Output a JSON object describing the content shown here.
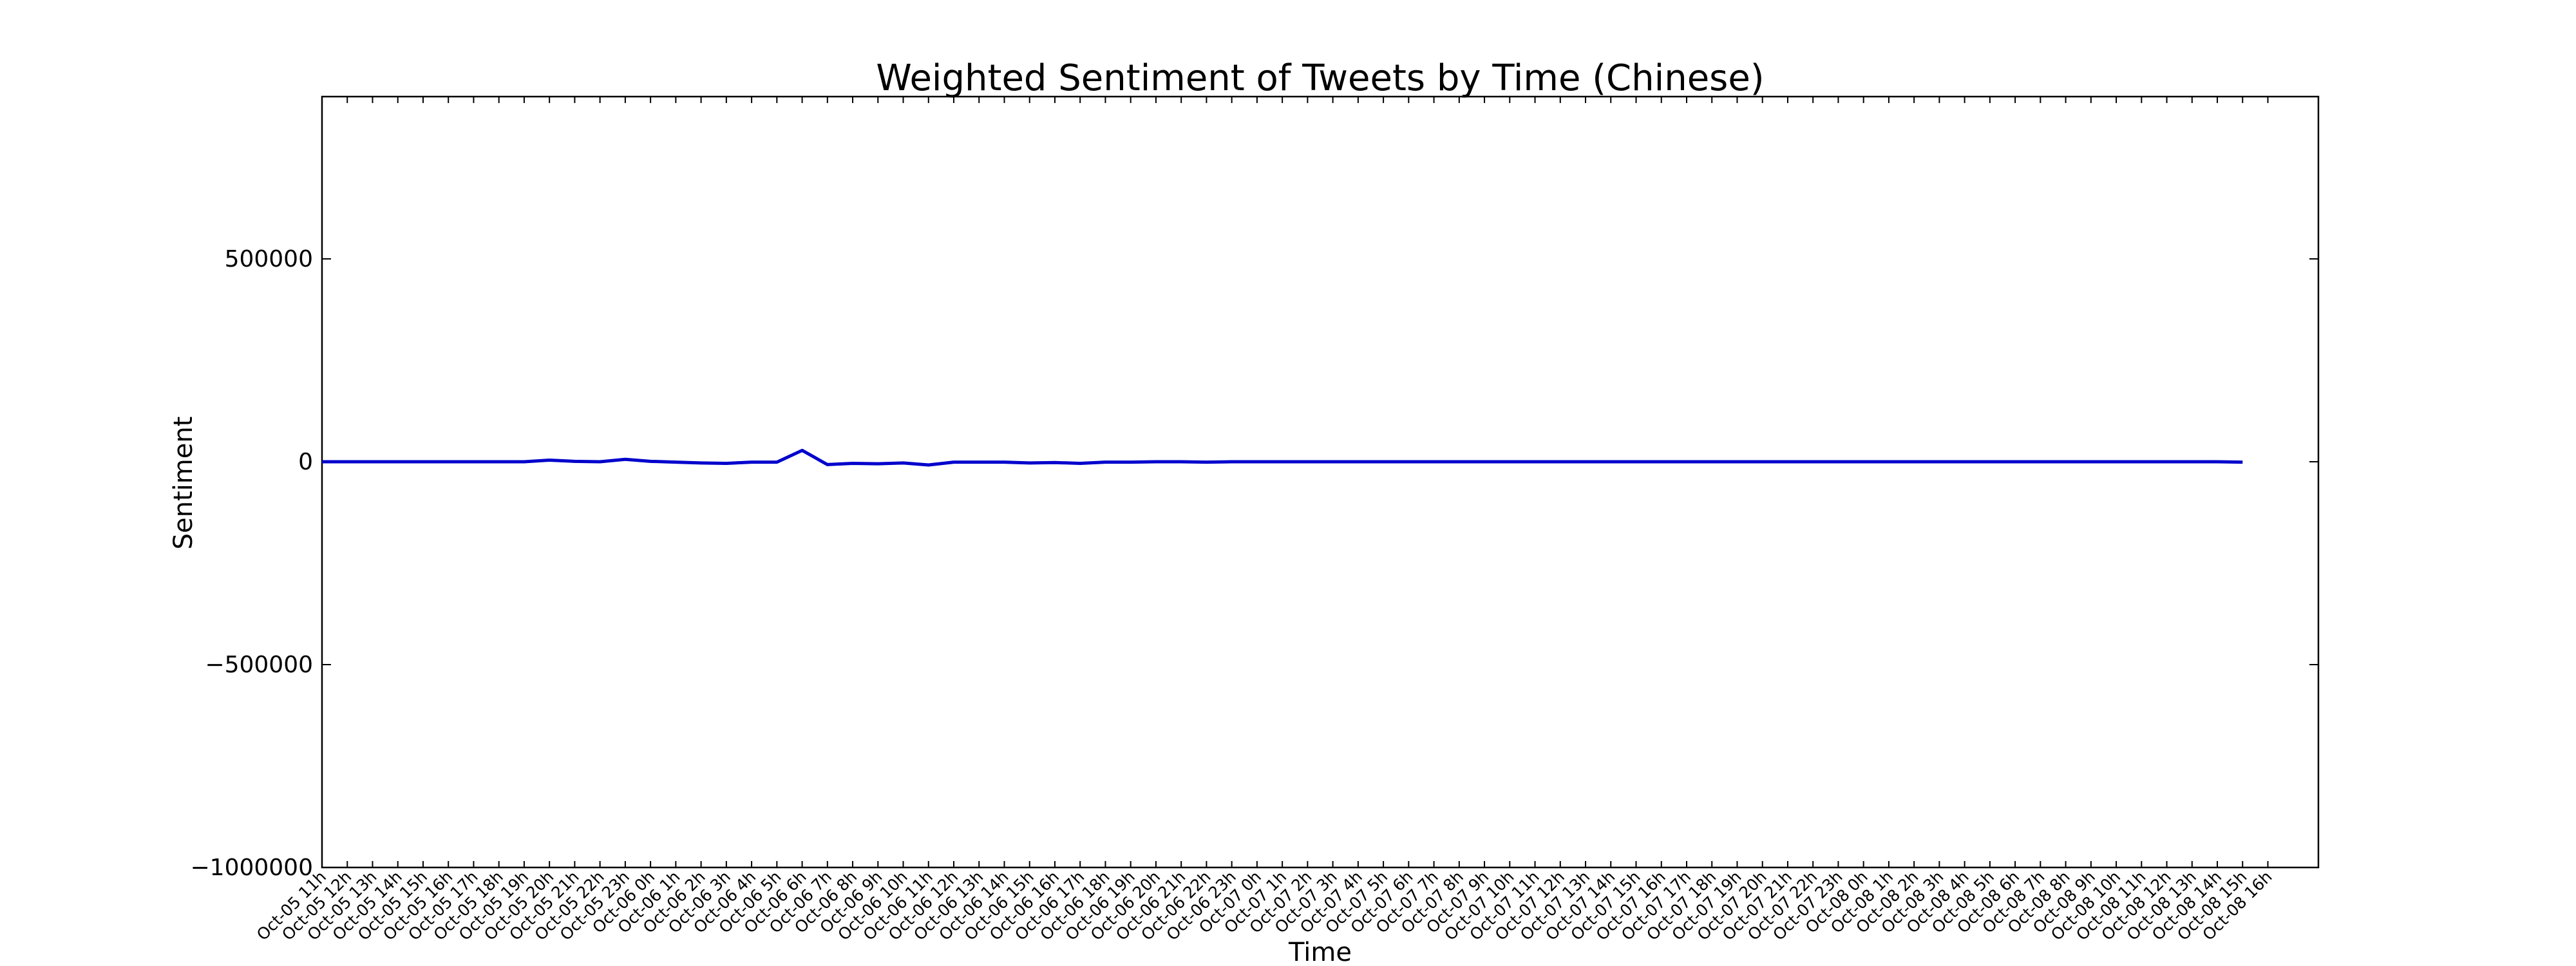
{
  "chart_data": {
    "type": "line",
    "title": "Weighted Sentiment of Tweets by Time (Chinese)",
    "x_label": "Time",
    "y_label": "Sentiment",
    "categories": [
      "Oct-05 11h",
      "Oct-05 12h",
      "Oct-05 13h",
      "Oct-05 14h",
      "Oct-05 15h",
      "Oct-05 16h",
      "Oct-05 17h",
      "Oct-05 18h",
      "Oct-05 19h",
      "Oct-05 20h",
      "Oct-05 21h",
      "Oct-05 22h",
      "Oct-05 23h",
      "Oct-06 0h",
      "Oct-06 1h",
      "Oct-06 2h",
      "Oct-06 3h",
      "Oct-06 4h",
      "Oct-06 5h",
      "Oct-06 6h",
      "Oct-06 7h",
      "Oct-06 8h",
      "Oct-06 9h",
      "Oct-06 10h",
      "Oct-06 11h",
      "Oct-06 12h",
      "Oct-06 13h",
      "Oct-06 14h",
      "Oct-06 15h",
      "Oct-06 16h",
      "Oct-06 17h",
      "Oct-06 18h",
      "Oct-06 19h",
      "Oct-06 20h",
      "Oct-06 21h",
      "Oct-06 22h",
      "Oct-06 23h",
      "Oct-07 0h",
      "Oct-07 1h",
      "Oct-07 2h",
      "Oct-07 3h",
      "Oct-07 4h",
      "Oct-07 5h",
      "Oct-07 6h",
      "Oct-07 7h",
      "Oct-07 8h",
      "Oct-07 9h",
      "Oct-07 10h",
      "Oct-07 11h",
      "Oct-07 12h",
      "Oct-07 13h",
      "Oct-07 14h",
      "Oct-07 15h",
      "Oct-07 16h",
      "Oct-07 17h",
      "Oct-07 18h",
      "Oct-07 19h",
      "Oct-07 20h",
      "Oct-07 21h",
      "Oct-07 22h",
      "Oct-07 23h",
      "Oct-08 0h",
      "Oct-08 1h",
      "Oct-08 2h",
      "Oct-08 3h",
      "Oct-08 4h",
      "Oct-08 5h",
      "Oct-08 6h",
      "Oct-08 7h",
      "Oct-08 8h",
      "Oct-08 9h",
      "Oct-08 10h",
      "Oct-08 11h",
      "Oct-08 12h",
      "Oct-08 13h",
      "Oct-08 14h",
      "Oct-08 15h",
      "Oct-08 16h"
    ],
    "series": [
      {
        "name": "Sentiment",
        "color": "#0000cc",
        "values": [
          0,
          0,
          0,
          0,
          0,
          0,
          0,
          0,
          0,
          4000,
          1000,
          0,
          6000,
          1000,
          -1000,
          -3000,
          -4000,
          -1000,
          -1000,
          28000,
          -7000,
          -4000,
          -5000,
          -3000,
          -8000,
          -1000,
          -1000,
          -1000,
          -3000,
          -2000,
          -4000,
          -1000,
          -1000,
          0,
          0,
          -1000,
          0,
          0,
          0,
          0,
          0,
          0,
          0,
          0,
          0,
          0,
          0,
          0,
          0,
          0,
          0,
          0,
          0,
          0,
          0,
          0,
          0,
          0,
          0,
          0,
          0,
          0,
          0,
          0,
          0,
          0,
          0,
          0,
          0,
          0,
          0,
          0,
          0,
          0,
          0,
          0,
          -1000,
          null
        ]
      }
    ],
    "ylim": [
      -1000000,
      900000
    ],
    "yticks": [
      {
        "value": -1000000,
        "label": "−1000000"
      },
      {
        "value": -500000,
        "label": "−500000"
      },
      0,
      500000
    ],
    "grid": false
  }
}
